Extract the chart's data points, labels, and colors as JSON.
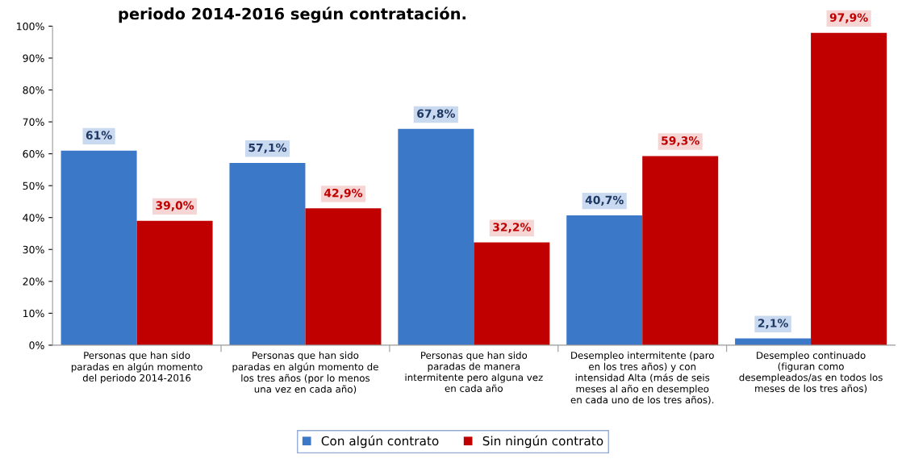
{
  "chart_data": {
    "type": "bar",
    "title": "periodo 2014-2016 según contratación.",
    "categories": [
      "Personas que han sido\nparadas en algún momento\ndel periodo 2014-2016",
      "Personas que han sido\nparadas en algún momento de\nlos tres años (por lo menos\nuna vez en cada año)",
      "Personas que han sido\nparadas de manera\nintermitente pero alguna vez\nen cada año",
      "Desempleo intermitente (paro\nen los tres años) y con\nintensidad Alta (más de seis\nmeses al año en desempleo\nen cada uno de los tres años).",
      "Desempleo continuado\n(figuran como\ndesempleados/as en todos los\nmeses de los tres años)"
    ],
    "series": [
      {
        "name": "Con algún contrato",
        "color": "#3c78c8",
        "values": [
          61,
          57.1,
          67.8,
          40.7,
          2.1
        ],
        "value_labels": [
          "61%",
          "57,1%",
          "67,8%",
          "40,7%",
          "2,1%"
        ]
      },
      {
        "name": "Sin ningún contrato",
        "color": "#c00000",
        "values": [
          39.0,
          42.9,
          32.2,
          59.3,
          97.9
        ],
        "value_labels": [
          "39,0%",
          "42,9%",
          "32,2%",
          "59,3%",
          "97,9%"
        ]
      }
    ],
    "ylim": [
      0,
      100
    ],
    "yticks": [
      {
        "value": 0,
        "label": "0%"
      },
      {
        "value": 10,
        "label": "10%"
      },
      {
        "value": 20,
        "label": "20%"
      },
      {
        "value": 30,
        "label": "30%"
      },
      {
        "value": 40,
        "label": "40%"
      },
      {
        "value": 50,
        "label": "50%"
      },
      {
        "value": 60,
        "label": "60%"
      },
      {
        "value": 70,
        "label": "70%"
      },
      {
        "value": 80,
        "label": "80%"
      },
      {
        "value": 90,
        "label": "90%"
      },
      {
        "value": 100,
        "label": "100%"
      }
    ],
    "legend": "bottom",
    "grid": false
  }
}
